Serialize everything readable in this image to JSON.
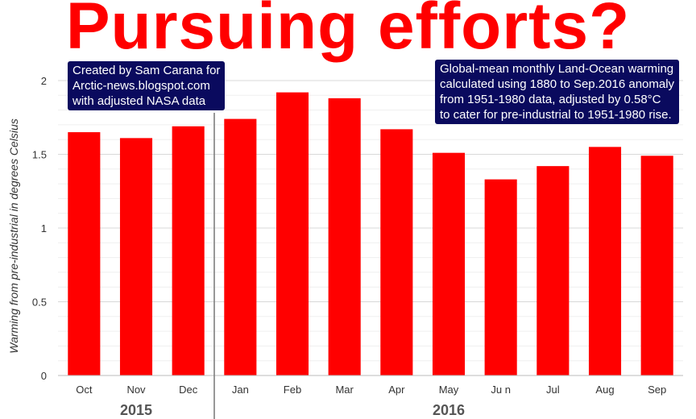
{
  "chart_data": {
    "type": "bar",
    "title": "Pursuing efforts?",
    "ylabel": "Warming from pre-industrial in degrees Celsius",
    "xlabel": "",
    "ylim": [
      0,
      2
    ],
    "yticks": [
      "0",
      "0.5",
      "1",
      "1.5",
      "2"
    ],
    "categories": [
      "Oct",
      "Nov",
      "Dec",
      "Jan",
      "Feb",
      "Mar",
      "Apr",
      "May",
      "Ju n",
      "Jul",
      "Aug",
      "Sep"
    ],
    "values": [
      1.65,
      1.61,
      1.69,
      1.74,
      1.92,
      1.88,
      1.67,
      1.51,
      1.33,
      1.42,
      1.55,
      1.49
    ],
    "groups": [
      {
        "label": "2015",
        "count": 3
      },
      {
        "label": "2016",
        "count": 9
      }
    ],
    "bar_color": "#ff0000",
    "grid": true,
    "annotations": {
      "credit": [
        "Created by Sam Carana for",
        "Arctic-news.blogspot.com",
        "with adjusted NASA data"
      ],
      "description": [
        "Global-mean monthly Land-Ocean warming",
        "calculated using 1880 to Sep.2016 anomaly",
        "from 1951-1980 data, adjusted by 0.58°C",
        "to cater for pre-industrial to 1951-1980 rise."
      ]
    }
  }
}
